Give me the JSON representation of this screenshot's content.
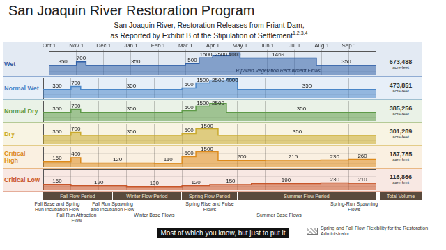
{
  "header": {
    "title": "San Joaquin River Restoration Program",
    "chart_title": [
      "San Joaquin River, Restoration Releases from Friant Dam,",
      "as Reported by Exhibit B of the Stipulation of Settlement"
    ],
    "chart_title_note": "1,2,3,4"
  },
  "chart_data": [
    {
      "type": "line",
      "title": "Wet",
      "color": "#2f5fa7",
      "line_style": "stepped",
      "data_labels": true,
      "grid": true,
      "tick_labels": "x",
      "log": "y",
      "x": [
        0,
        1,
        1.35,
        5,
        5.5,
        6,
        6.6,
        7,
        9.8
      ],
      "values": [
        350,
        700,
        350,
        500,
        1500,
        2500,
        4000,
        1469,
        350
      ],
      "xlim": [
        0,
        12
      ],
      "xticks": [
        {
          "value": 0,
          "label": "Oct 1"
        },
        {
          "value": 1,
          "label": "Nov 1"
        },
        {
          "value": 2,
          "label": "Dec 1"
        },
        {
          "value": 3,
          "label": "Jan 1"
        },
        {
          "value": 4,
          "label": "Feb 1"
        },
        {
          "value": 5,
          "label": "Mar 1"
        },
        {
          "value": 6,
          "label": "Apr 1"
        },
        {
          "value": 7,
          "label": "May 1"
        },
        {
          "value": 8,
          "label": "Jun 1"
        },
        {
          "value": 9,
          "label": "Jul 1"
        },
        {
          "value": 10,
          "label": "Aug 1"
        },
        {
          "value": 11,
          "label": "Sep 1"
        }
      ],
      "ylim": [
        50,
        5000
      ],
      "yticks": [
        100,
        1000
      ],
      "annotations": [
        {
          "text": "Riparian Vegetation Recruitment Flows",
          "x": 8.4
        }
      ],
      "total_volume": {
        "label": "673,488",
        "unit": "acre-feet"
      }
    },
    {
      "type": "line",
      "title": "Normal Wet",
      "color": "#4a86c8",
      "line_style": "stepped",
      "data_labels": true,
      "grid": true,
      "tick_labels": false,
      "log": "y",
      "x": [
        0,
        1,
        1.35,
        5,
        5.5,
        6,
        6.6,
        7
      ],
      "values": [
        350,
        700,
        350,
        500,
        1500,
        2500,
        4000,
        350
      ],
      "xlim": [
        0,
        12
      ],
      "xticks": [
        {
          "value": 0,
          "label": "Oct 1"
        },
        {
          "value": 1,
          "label": "Nov 1"
        },
        {
          "value": 2,
          "label": "Dec 1"
        },
        {
          "value": 3,
          "label": "Jan 1"
        },
        {
          "value": 4,
          "label": "Feb 1"
        },
        {
          "value": 5,
          "label": "Mar 1"
        },
        {
          "value": 6,
          "label": "Apr 1"
        },
        {
          "value": 7,
          "label": "May 1"
        },
        {
          "value": 8,
          "label": "Jun 1"
        },
        {
          "value": 9,
          "label": "Jul 1"
        },
        {
          "value": 10,
          "label": "Aug 1"
        },
        {
          "value": 11,
          "label": "Sep 1"
        }
      ],
      "ylim": [
        50,
        5000
      ],
      "yticks": [
        100,
        1000
      ],
      "total_volume": {
        "label": "473,851",
        "unit": "acre-feet"
      }
    },
    {
      "type": "line",
      "title": "Normal Dry",
      "color": "#5e9a48",
      "line_style": "stepped",
      "data_labels": true,
      "grid": true,
      "tick_labels": false,
      "log": "y",
      "x": [
        0,
        1,
        1.35,
        5,
        5.5,
        6,
        6.6
      ],
      "values": [
        350,
        700,
        350,
        500,
        1500,
        2500,
        350
      ],
      "xlim": [
        0,
        12
      ],
      "xticks": [
        {
          "value": 0,
          "label": "Oct 1"
        },
        {
          "value": 1,
          "label": "Nov 1"
        },
        {
          "value": 2,
          "label": "Dec 1"
        },
        {
          "value": 3,
          "label": "Jan 1"
        },
        {
          "value": 4,
          "label": "Feb 1"
        },
        {
          "value": 5,
          "label": "Mar 1"
        },
        {
          "value": 6,
          "label": "Apr 1"
        },
        {
          "value": 7,
          "label": "May 1"
        },
        {
          "value": 8,
          "label": "Jun 1"
        },
        {
          "value": 9,
          "label": "Jul 1"
        },
        {
          "value": 10,
          "label": "Aug 1"
        },
        {
          "value": 11,
          "label": "Sep 1"
        }
      ],
      "ylim": [
        50,
        5000
      ],
      "yticks": [
        100,
        1000
      ],
      "total_volume": {
        "label": "385,256",
        "unit": "acre-feet"
      }
    },
    {
      "type": "line",
      "title": "Dry",
      "color": "#c9a92a",
      "line_style": "stepped",
      "data_labels": true,
      "grid": true,
      "tick_labels": false,
      "log": "y",
      "x": [
        0,
        1,
        1.35,
        5,
        5.5,
        6.3
      ],
      "values": [
        350,
        700,
        350,
        500,
        1500,
        350
      ],
      "xlim": [
        0,
        12
      ],
      "xticks": [
        {
          "value": 0,
          "label": "Oct 1"
        },
        {
          "value": 1,
          "label": "Nov 1"
        },
        {
          "value": 2,
          "label": "Dec 1"
        },
        {
          "value": 3,
          "label": "Jan 1"
        },
        {
          "value": 4,
          "label": "Feb 1"
        },
        {
          "value": 5,
          "label": "Mar 1"
        },
        {
          "value": 6,
          "label": "Apr 1"
        },
        {
          "value": 7,
          "label": "May 1"
        },
        {
          "value": 8,
          "label": "Jun 1"
        },
        {
          "value": 9,
          "label": "Jul 1"
        },
        {
          "value": 10,
          "label": "Aug 1"
        },
        {
          "value": 11,
          "label": "Sep 1"
        }
      ],
      "ylim": [
        50,
        5000
      ],
      "yticks": [
        100,
        1000
      ],
      "total_volume": {
        "label": "301,289",
        "unit": "acre-feet"
      }
    },
    {
      "type": "line",
      "title": "Critical High",
      "color": "#dd8b1c",
      "line_style": "stepped",
      "data_labels": true,
      "grid": true,
      "tick_labels": false,
      "log": "y",
      "x": [
        0,
        1,
        1.35,
        4,
        5,
        5.5,
        6.3,
        8,
        10,
        11
      ],
      "values": [
        160,
        400,
        120,
        110,
        500,
        1500,
        200,
        215,
        230,
        260
      ],
      "xlim": [
        0,
        12
      ],
      "xticks": [
        {
          "value": 0,
          "label": "Oct 1"
        },
        {
          "value": 1,
          "label": "Nov 1"
        },
        {
          "value": 2,
          "label": "Dec 1"
        },
        {
          "value": 3,
          "label": "Jan 1"
        },
        {
          "value": 4,
          "label": "Feb 1"
        },
        {
          "value": 5,
          "label": "Mar 1"
        },
        {
          "value": 6,
          "label": "Apr 1"
        },
        {
          "value": 7,
          "label": "May 1"
        },
        {
          "value": 8,
          "label": "Jun 1"
        },
        {
          "value": 9,
          "label": "Jul 1"
        },
        {
          "value": 10,
          "label": "Aug 1"
        },
        {
          "value": 11,
          "label": "Sep 1"
        }
      ],
      "ylim": [
        50,
        5000
      ],
      "yticks": [
        100,
        1000
      ],
      "total_volume": {
        "label": "187,785",
        "unit": "acre-feet"
      }
    },
    {
      "type": "line",
      "title": "Critical Low",
      "color": "#c8562a",
      "line_style": "stepped",
      "data_labels": true,
      "grid": true,
      "tick_labels": false,
      "log": "y",
      "x": [
        0,
        1,
        3,
        5,
        6,
        7.5,
        10,
        11
      ],
      "values": [
        160,
        120,
        100,
        120,
        150,
        190,
        230,
        210
      ],
      "xlim": [
        0,
        12
      ],
      "xticks": [
        {
          "value": 0,
          "label": "Oct 1"
        },
        {
          "value": 1,
          "label": "Nov 1"
        },
        {
          "value": 2,
          "label": "Dec 1"
        },
        {
          "value": 3,
          "label": "Jan 1"
        },
        {
          "value": 4,
          "label": "Feb 1"
        },
        {
          "value": 5,
          "label": "Mar 1"
        },
        {
          "value": 6,
          "label": "Apr 1"
        },
        {
          "value": 7,
          "label": "May 1"
        },
        {
          "value": 8,
          "label": "Jun 1"
        },
        {
          "value": 9,
          "label": "Jul 1"
        },
        {
          "value": 10,
          "label": "Aug 1"
        },
        {
          "value": 11,
          "label": "Sep 1"
        }
      ],
      "ylim": [
        50,
        5000
      ],
      "yticks": [
        100,
        1000
      ],
      "total_volume": {
        "label": "116,866",
        "unit": "acre-feet"
      }
    }
  ],
  "total_heading": "Total Volume",
  "periods": [
    {
      "label": "Fall Flow Period",
      "start": 0,
      "end": 2.5
    },
    {
      "label": "Winter Flow Period",
      "start": 2.5,
      "end": 5
    },
    {
      "label": "Spring Flow Period",
      "start": 5,
      "end": 7
    },
    {
      "label": "Summer Flow Period",
      "start": 7,
      "end": 12
    }
  ],
  "flow_types": [
    {
      "label": "Fall Base and Spring Run Incubation Flow",
      "x": 0.5
    },
    {
      "label": "Fall Run Attraction Flow",
      "x": 1.2
    },
    {
      "label": "Fall Run Spawning and Incubation Flow",
      "x": 2.5
    },
    {
      "label": "Winter Base Flows",
      "x": 4.0
    },
    {
      "label": "Spring Rise and Pulse Flows",
      "x": 6.0
    },
    {
      "label": "Summer Base Flows",
      "x": 8.5
    },
    {
      "label": "Spring-Run Spawning Flows",
      "x": 11.2
    }
  ],
  "legend_note": "Spring and Fall Flow Flexibility for the Restoration Administrator",
  "caption": "Most of which you know, but just to put it"
}
